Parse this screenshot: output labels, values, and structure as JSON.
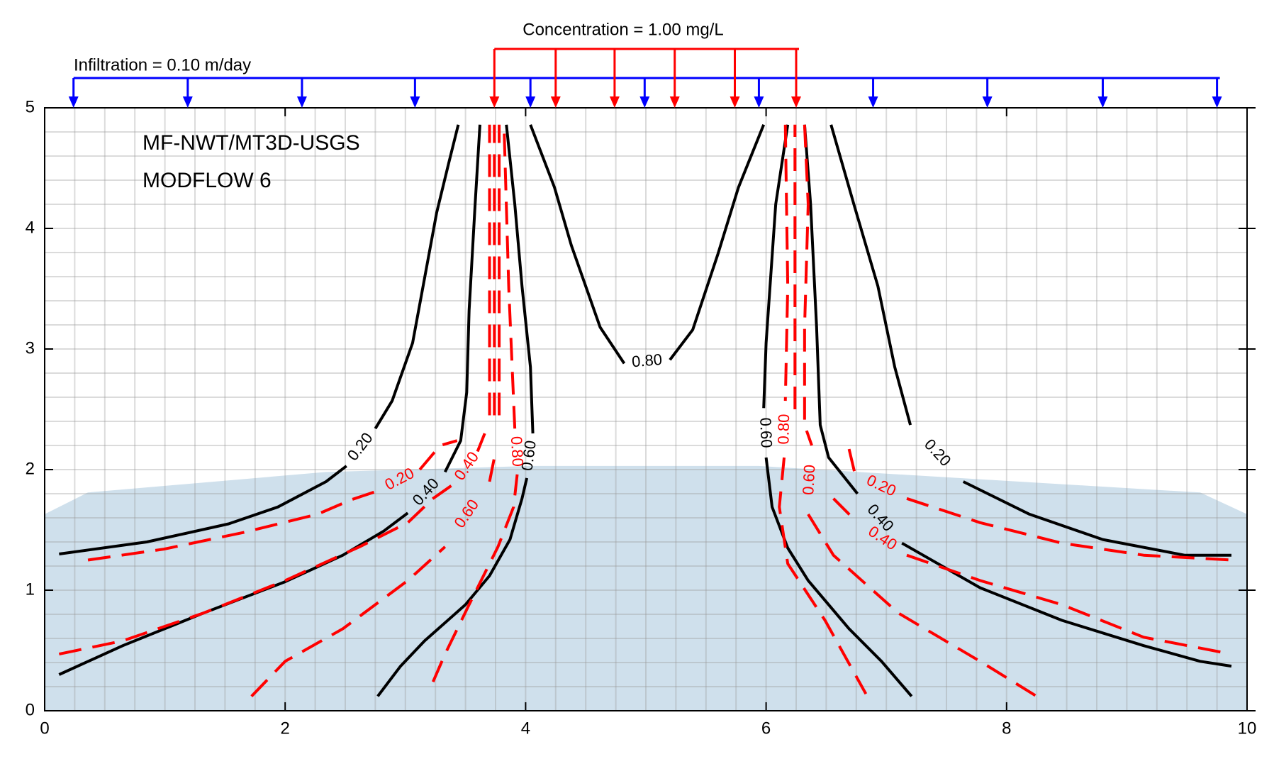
{
  "chart_data": {
    "type": "contour",
    "xlim": [
      0,
      10
    ],
    "ylim": [
      0,
      5
    ],
    "xticks": [
      0,
      2,
      4,
      6,
      8,
      10
    ],
    "yticks": [
      0,
      1,
      2,
      3,
      4,
      5
    ],
    "annotations": {
      "infiltration": "Infiltration = 0.10 m/day",
      "concentration": "Concentration = 1.00 mg/L"
    },
    "infiltration_x": [
      0.24,
      1.19,
      2.14,
      3.08,
      4.04,
      4.99,
      5.94,
      6.89,
      7.84,
      8.8,
      9.75
    ],
    "infiltration_color": "#0000ff",
    "concentration_x": [
      3.74,
      4.25,
      4.74,
      5.24,
      5.74,
      6.25
    ],
    "concentration_color": "#ff0000",
    "model_grid": {
      "x": [
        0.25,
        0.5,
        0.75,
        1,
        1.25,
        1.5,
        1.75,
        2,
        2.25,
        2.5,
        2.75,
        3,
        3.25,
        3.5,
        3.75,
        4,
        4.25,
        4.5,
        4.75,
        5,
        5.25,
        5.5,
        5.75,
        6,
        6.25,
        6.5,
        6.75,
        7,
        7.25,
        7.5,
        7.75,
        8,
        8.25,
        8.5,
        8.75,
        9,
        9.25,
        9.5,
        9.75
      ],
      "y": [
        0.2,
        0.4,
        0.6,
        0.8,
        1,
        1.2,
        1.4,
        1.6,
        1.8,
        2,
        2.2,
        2.4,
        2.6,
        2.8,
        3,
        3.2,
        3.4,
        3.6,
        3.8,
        4,
        4.2,
        4.4,
        4.6,
        4.8
      ]
    },
    "saturated": {
      "color": "#cfe0ec",
      "x": [
        0,
        0.36,
        2.34,
        4.04,
        5.94,
        9.61,
        10
      ],
      "y": [
        1.63,
        1.81,
        1.98,
        2.03,
        2.03,
        1.81,
        1.63
      ]
    },
    "series": [
      {
        "name": "MF-NWT/MT3D-USGS",
        "color": "#000000",
        "dashed": false,
        "contours": [
          {
            "level": 0.2,
            "level_label": "0.20",
            "x": [
              0.12,
              0.85,
              1.53,
              1.94,
              2.34,
              2.51,
              null,
              2.75,
              2.89,
              3.06,
              3.16,
              3.26,
              3.36,
              3.44
            ],
            "y": [
              1.3,
              1.4,
              1.55,
              1.69,
              1.9,
              2.03,
              null,
              2.34,
              2.57,
              3.05,
              3.59,
              4.13,
              4.54,
              4.86
            ]
          },
          {
            "level": 0.4,
            "level_label": "0.40",
            "x": [
              0.12,
              0.65,
              1.32,
              2.0,
              2.48,
              2.82,
              3.02,
              null,
              3.33,
              3.46,
              3.51,
              3.53,
              3.58,
              3.62
            ],
            "y": [
              0.3,
              0.54,
              0.81,
              1.07,
              1.29,
              1.49,
              1.64,
              null,
              1.98,
              2.24,
              2.64,
              3.32,
              4.2,
              4.86
            ]
          },
          {
            "level": 0.6,
            "level_label": "0.60",
            "x": [
              2.77,
              2.96,
              3.16,
              3.5,
              3.7,
              3.87,
              3.97,
              4.01,
              null,
              4.06,
              4.04,
              3.97,
              3.91,
              3.84
            ],
            "y": [
              0.12,
              0.37,
              0.58,
              0.88,
              1.12,
              1.42,
              1.76,
              1.93,
              null,
              2.3,
              2.85,
              3.52,
              4.2,
              4.86
            ]
          },
          {
            "level": 0.8,
            "level_label": "0.80",
            "x": [
              4.04,
              4.24,
              4.38,
              4.62,
              4.82,
              null,
              5.2,
              5.39,
              5.6,
              5.77,
              5.98
            ],
            "y": [
              4.86,
              4.34,
              3.86,
              3.18,
              2.88,
              null,
              2.91,
              3.16,
              3.79,
              4.34,
              4.86
            ]
          },
          {
            "level": 0.6,
            "level_label": "0.60",
            "x": [
              6.18,
              6.08,
              6.0,
              5.98,
              null,
              6.0,
              6.05,
              6.18,
              6.35,
              6.69,
              6.96,
              7.21
            ],
            "y": [
              4.86,
              4.2,
              3.05,
              2.51,
              null,
              2.1,
              1.69,
              1.35,
              1.08,
              0.68,
              0.41,
              0.12
            ]
          },
          {
            "level": 0.4,
            "level_label": "0.40",
            "x": [
              6.32,
              6.37,
              6.42,
              6.45,
              6.52,
              6.76,
              null,
              7.13,
              7.78,
              8.46,
              9.14,
              9.61,
              9.87
            ],
            "y": [
              4.86,
              4.2,
              3.18,
              2.37,
              2.1,
              1.8,
              null,
              1.39,
              1.02,
              0.75,
              0.54,
              0.41,
              0.37
            ]
          },
          {
            "level": 0.2,
            "level_label": "0.20",
            "x": [
              6.54,
              6.73,
              6.93,
              7.07,
              7.2,
              null,
              7.64,
              8.19,
              8.8,
              9.48,
              9.87
            ],
            "y": [
              4.86,
              4.2,
              3.52,
              2.85,
              2.37,
              null,
              1.9,
              1.63,
              1.42,
              1.29,
              1.29
            ]
          }
        ]
      },
      {
        "name": "MODFLOW 6",
        "color": "#ff0000",
        "dashed": true,
        "contours": [
          {
            "level": 0.2,
            "level_label": "0.20",
            "x": [
              0.36,
              0.99,
              1.66,
              2.27,
              2.55,
              2.79,
              null,
              3.12,
              3.29,
              3.43
            ],
            "y": [
              1.25,
              1.34,
              1.48,
              1.63,
              1.75,
              1.83,
              null,
              2.0,
              2.2,
              2.24
            ]
          },
          {
            "level": 0.4,
            "level_label": "0.40",
            "x": [
              0.12,
              0.65,
              1.32,
              2.0,
              2.62,
              3.02,
              3.23,
              3.43,
              null,
              3.6,
              3.66
            ],
            "y": [
              0.47,
              0.58,
              0.81,
              1.08,
              1.36,
              1.56,
              1.76,
              1.9,
              null,
              2.15,
              2.3
            ]
          },
          {
            "level": 0.6,
            "level_label": "0.60",
            "x": [
              1.72,
              2.0,
              2.48,
              3.02,
              3.33,
              null,
              3.7,
              3.74
            ],
            "y": [
              0.12,
              0.41,
              0.68,
              1.08,
              1.36,
              null,
              1.9,
              2.1
            ]
          },
          {
            "level": 0.8,
            "level_label": "0.80",
            "x": [
              3.23,
              3.33,
              3.53,
              3.77,
              3.9,
              3.93,
              null,
              3.91,
              3.86,
              3.82
            ],
            "y": [
              0.24,
              0.47,
              0.88,
              1.36,
              1.69,
              1.96,
              null,
              2.34,
              3.5,
              4.86
            ]
          },
          {
            "x": [
              3.7,
              3.7
            ],
            "y": [
              2.45,
              4.86
            ]
          },
          {
            "x": [
              3.74,
              3.74
            ],
            "y": [
              2.45,
              4.86
            ]
          },
          {
            "x": [
              3.78,
              3.78
            ],
            "y": [
              2.45,
              4.86
            ]
          },
          {
            "level": 0.2,
            "level_label": "0.20",
            "x": [
              6.69,
              6.74,
              null,
              7.17,
              7.78,
              8.46,
              9.14,
              9.87
            ],
            "y": [
              2.17,
              1.96,
              null,
              1.76,
              1.56,
              1.39,
              1.29,
              1.25
            ]
          },
          {
            "level": 0.4,
            "level_label": "0.40",
            "x": [
              6.56,
              6.76,
              null,
              7.17,
              7.78,
              8.46,
              9.14,
              9.87
            ],
            "y": [
              1.76,
              1.56,
              null,
              1.29,
              1.08,
              0.88,
              0.61,
              0.47
            ]
          },
          {
            "level": 0.6,
            "level_label": "0.60",
            "x": [
              6.32,
              6.35,
              6.32,
              6.32,
              6.38,
              null,
              6.35,
              6.56,
              7.1,
              7.78,
              8.25
            ],
            "y": [
              4.86,
              4.2,
              3.18,
              2.37,
              2.2,
              null,
              1.63,
              1.29,
              0.81,
              0.41,
              0.12
            ]
          },
          {
            "level": 0.8,
            "level_label": "0.80",
            "x": [
              6.16,
              6.18,
              6.16,
              null,
              6.15,
              6.11,
              6.18,
              6.49,
              6.83
            ],
            "y": [
              4.86,
              3.52,
              2.57,
              null,
              2.1,
              1.69,
              1.22,
              0.75,
              0.14
            ]
          },
          {
            "x": [
              6.24,
              6.24
            ],
            "y": [
              2.5,
              4.86
            ]
          }
        ]
      }
    ]
  }
}
